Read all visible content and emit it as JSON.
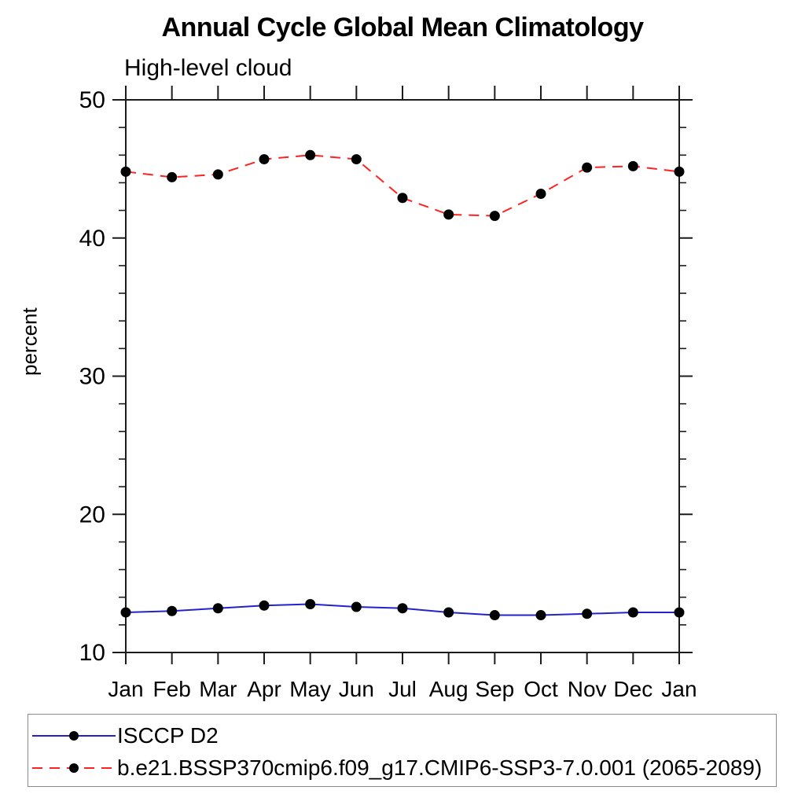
{
  "chart_data": {
    "type": "line",
    "title": "Annual Cycle Global Mean Climatology",
    "subtitle": "High-level cloud",
    "xlabel": "",
    "ylabel": "percent",
    "categories": [
      "Jan",
      "Feb",
      "Mar",
      "Apr",
      "May",
      "Jun",
      "Jul",
      "Aug",
      "Sep",
      "Oct",
      "Nov",
      "Dec",
      "Jan"
    ],
    "ylim": [
      10,
      50
    ],
    "y_major_ticks": [
      10,
      20,
      30,
      40,
      50
    ],
    "y_minor_step": 2,
    "grid": false,
    "legend_position": "bottom-left box",
    "axis_color": "#1c1c1c",
    "background": "#ffffff",
    "series": [
      {
        "name": "ISCCP D2",
        "color": "#2323cc",
        "line_style": "solid",
        "marker": "filled-circle",
        "marker_color": "#000000",
        "values": [
          12.9,
          13.0,
          13.2,
          13.4,
          13.5,
          13.3,
          13.2,
          12.9,
          12.7,
          12.7,
          12.8,
          12.9,
          12.9
        ]
      },
      {
        "name": "b.e21.BSSP370cmip6.f09_g17.CMIP6-SSP3-7.0.001 (2065-2089)",
        "color": "#ff2222",
        "line_style": "dashed",
        "marker": "filled-circle",
        "marker_color": "#000000",
        "values": [
          44.8,
          44.4,
          44.6,
          45.7,
          46.0,
          45.7,
          42.9,
          41.7,
          41.6,
          43.2,
          45.1,
          45.2,
          44.8
        ]
      }
    ]
  }
}
